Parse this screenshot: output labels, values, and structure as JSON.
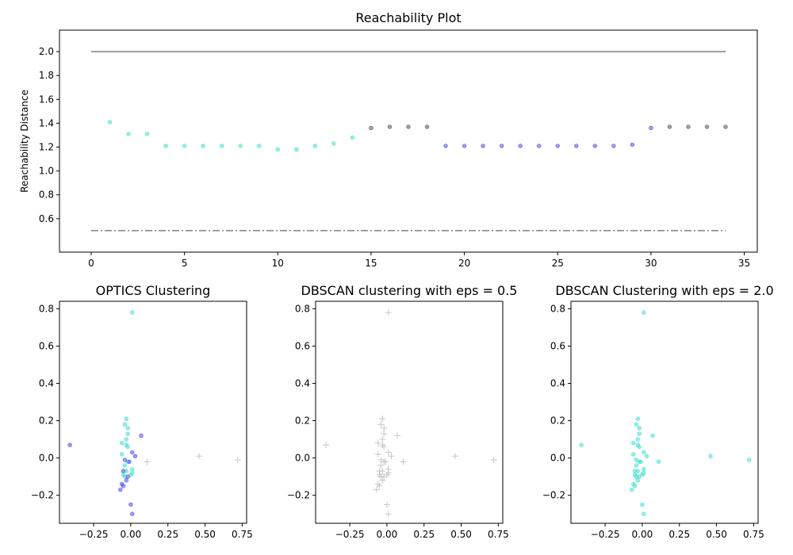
{
  "chart_data": [
    {
      "type": "scatter",
      "title": "Reachability Plot",
      "xlabel": "",
      "ylabel": "Reachability Distance",
      "xlim": [
        -1.7,
        35.7
      ],
      "ylim": [
        0.32,
        2.18
      ],
      "xticks": [
        "0",
        "5",
        "10",
        "15",
        "20",
        "25",
        "30",
        "35"
      ],
      "yticks": [
        "0.6",
        "0.8",
        "1.0",
        "1.2",
        "1.4",
        "1.6",
        "1.8",
        "2.0"
      ],
      "grid": false,
      "reference_lines": [
        {
          "y": 2.0,
          "x_range": [
            0,
            34
          ],
          "style": "solid",
          "color": "#808080"
        },
        {
          "y": 0.5,
          "x_range": [
            0,
            34
          ],
          "style": "dashdot",
          "color": "#808080"
        }
      ],
      "series": [
        {
          "color": "#40e0d0",
          "points": [
            [
              1,
              1.41
            ],
            [
              2,
              1.31
            ],
            [
              3,
              1.31
            ],
            [
              4,
              1.21
            ],
            [
              5,
              1.21
            ],
            [
              6,
              1.21
            ],
            [
              7,
              1.21
            ],
            [
              8,
              1.21
            ],
            [
              9,
              1.21
            ],
            [
              10,
              1.18
            ],
            [
              11,
              1.18
            ],
            [
              12,
              1.21
            ],
            [
              13,
              1.23
            ],
            [
              14,
              1.28
            ]
          ]
        },
        {
          "color": "#4b4be6",
          "points": [
            [
              19,
              1.21
            ],
            [
              20,
              1.21
            ],
            [
              21,
              1.21
            ],
            [
              22,
              1.21
            ],
            [
              23,
              1.21
            ],
            [
              24,
              1.21
            ],
            [
              25,
              1.21
            ],
            [
              26,
              1.21
            ],
            [
              27,
              1.21
            ],
            [
              28,
              1.21
            ],
            [
              29,
              1.22
            ],
            [
              30,
              1.36
            ]
          ]
        },
        {
          "color": "#555555",
          "points": [
            [
              15,
              1.36
            ],
            [
              16,
              1.37
            ],
            [
              17,
              1.37
            ],
            [
              18,
              1.37
            ],
            [
              31,
              1.37
            ],
            [
              32,
              1.37
            ],
            [
              33,
              1.37
            ],
            [
              34,
              1.37
            ]
          ]
        }
      ]
    },
    {
      "type": "scatter",
      "title": "OPTICS Clustering",
      "xlabel": "",
      "ylabel": "",
      "xlim": [
        -0.48,
        0.78
      ],
      "ylim": [
        -0.35,
        0.84
      ],
      "xticks": [
        "−0.25",
        "0.00",
        "0.25",
        "0.50",
        "0.75"
      ],
      "yticks": [
        "−0.2",
        "0.0",
        "0.2",
        "0.4",
        "0.6",
        "0.8"
      ],
      "grid": false,
      "series": [
        {
          "color": "#40e0d0",
          "marker": "dot",
          "points": [
            [
              0.01,
              0.78
            ],
            [
              -0.03,
              0.21
            ],
            [
              -0.04,
              0.18
            ],
            [
              -0.02,
              0.16
            ],
            [
              -0.02,
              0.13
            ],
            [
              -0.03,
              0.1
            ],
            [
              -0.06,
              0.08
            ],
            [
              -0.03,
              0.07
            ],
            [
              -0.02,
              0.06
            ],
            [
              -0.06,
              0.02
            ],
            [
              -0.02,
              -0.02
            ],
            [
              -0.04,
              -0.04
            ],
            [
              0.01,
              -0.06
            ],
            [
              -0.03,
              -0.07
            ],
            [
              0.01,
              -0.08
            ],
            [
              -0.05,
              -0.09
            ],
            [
              0.0,
              -0.09
            ],
            [
              -0.04,
              -0.1
            ]
          ]
        },
        {
          "color": "#4b4be6",
          "marker": "dot",
          "points": [
            [
              -0.41,
              0.07
            ],
            [
              0.07,
              0.12
            ],
            [
              0.01,
              0.03
            ],
            [
              0.03,
              0.01
            ],
            [
              -0.04,
              -0.01
            ],
            [
              -0.01,
              -0.02
            ],
            [
              -0.05,
              -0.07
            ],
            [
              -0.02,
              -0.1
            ],
            [
              -0.03,
              -0.12
            ],
            [
              -0.06,
              -0.14
            ],
            [
              -0.05,
              -0.15
            ],
            [
              -0.07,
              -0.17
            ],
            [
              0.0,
              -0.25
            ],
            [
              0.01,
              -0.3
            ]
          ]
        },
        {
          "color": "#b4b4b4",
          "marker": "plus",
          "points": [
            [
              0.11,
              -0.02
            ],
            [
              0.46,
              0.01
            ],
            [
              0.72,
              -0.01
            ]
          ]
        }
      ]
    },
    {
      "type": "scatter",
      "title": "DBSCAN clustering with eps = 0.5",
      "xlabel": "",
      "ylabel": "",
      "xlim": [
        -0.48,
        0.78
      ],
      "ylim": [
        -0.35,
        0.84
      ],
      "xticks": [
        "−0.25",
        "0.00",
        "0.25",
        "0.50",
        "0.75"
      ],
      "yticks": [
        "−0.2",
        "0.0",
        "0.2",
        "0.4",
        "0.6",
        "0.8"
      ],
      "grid": false,
      "series": [
        {
          "color": "#b4b4b4",
          "marker": "plus",
          "points": [
            [
              0.01,
              0.78
            ],
            [
              -0.03,
              0.21
            ],
            [
              -0.04,
              0.18
            ],
            [
              -0.02,
              0.16
            ],
            [
              -0.02,
              0.13
            ],
            [
              -0.03,
              0.1
            ],
            [
              -0.06,
              0.08
            ],
            [
              -0.03,
              0.07
            ],
            [
              -0.02,
              0.06
            ],
            [
              -0.06,
              0.02
            ],
            [
              -0.02,
              -0.02
            ],
            [
              -0.04,
              -0.04
            ],
            [
              0.01,
              -0.06
            ],
            [
              -0.03,
              -0.07
            ],
            [
              0.01,
              -0.08
            ],
            [
              -0.05,
              -0.09
            ],
            [
              0.0,
              -0.09
            ],
            [
              -0.04,
              -0.1
            ],
            [
              -0.41,
              0.07
            ],
            [
              0.07,
              0.12
            ],
            [
              0.01,
              0.03
            ],
            [
              0.03,
              0.01
            ],
            [
              -0.04,
              -0.01
            ],
            [
              -0.01,
              -0.02
            ],
            [
              -0.05,
              -0.07
            ],
            [
              -0.02,
              -0.1
            ],
            [
              -0.03,
              -0.12
            ],
            [
              -0.06,
              -0.14
            ],
            [
              -0.05,
              -0.15
            ],
            [
              -0.07,
              -0.17
            ],
            [
              0.0,
              -0.25
            ],
            [
              0.01,
              -0.3
            ],
            [
              0.11,
              -0.02
            ],
            [
              0.46,
              0.01
            ],
            [
              0.72,
              -0.01
            ]
          ]
        }
      ]
    },
    {
      "type": "scatter",
      "title": "DBSCAN Clustering with eps = 2.0",
      "xlabel": "",
      "ylabel": "",
      "xlim": [
        -0.48,
        0.78
      ],
      "ylim": [
        -0.35,
        0.84
      ],
      "xticks": [
        "−0.25",
        "0.00",
        "0.25",
        "0.50",
        "0.75"
      ],
      "yticks": [
        "−0.2",
        "0.0",
        "0.2",
        "0.4",
        "0.6",
        "0.8"
      ],
      "grid": false,
      "series": [
        {
          "color": "#40e0d0",
          "marker": "dot",
          "points": [
            [
              0.01,
              0.78
            ],
            [
              -0.03,
              0.21
            ],
            [
              -0.04,
              0.18
            ],
            [
              -0.02,
              0.16
            ],
            [
              -0.02,
              0.13
            ],
            [
              -0.03,
              0.1
            ],
            [
              -0.06,
              0.08
            ],
            [
              -0.03,
              0.07
            ],
            [
              -0.02,
              0.06
            ],
            [
              -0.06,
              0.02
            ],
            [
              -0.02,
              -0.02
            ],
            [
              -0.04,
              -0.04
            ],
            [
              0.01,
              -0.06
            ],
            [
              -0.03,
              -0.07
            ],
            [
              0.01,
              -0.08
            ],
            [
              -0.05,
              -0.09
            ],
            [
              0.0,
              -0.09
            ],
            [
              -0.04,
              -0.1
            ],
            [
              -0.41,
              0.07
            ],
            [
              0.07,
              0.12
            ],
            [
              0.01,
              0.03
            ],
            [
              0.03,
              0.01
            ],
            [
              -0.04,
              -0.01
            ],
            [
              -0.01,
              -0.02
            ],
            [
              -0.05,
              -0.07
            ],
            [
              -0.02,
              -0.1
            ],
            [
              -0.03,
              -0.12
            ],
            [
              -0.06,
              -0.14
            ],
            [
              -0.05,
              -0.15
            ],
            [
              -0.07,
              -0.17
            ],
            [
              0.0,
              -0.25
            ],
            [
              0.01,
              -0.3
            ],
            [
              0.11,
              -0.02
            ],
            [
              0.46,
              0.01
            ],
            [
              0.72,
              -0.01
            ]
          ]
        }
      ]
    }
  ]
}
